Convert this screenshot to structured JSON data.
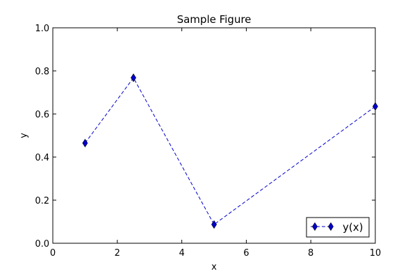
{
  "chart_data": {
    "type": "line",
    "title": "Sample Figure",
    "xlabel": "x",
    "ylabel": "y",
    "xlim": [
      0,
      10
    ],
    "ylim": [
      0.0,
      1.0
    ],
    "xticks": [
      0,
      2,
      4,
      6,
      8,
      10
    ],
    "xtick_labels": [
      "0",
      "2",
      "4",
      "6",
      "8",
      "10"
    ],
    "yticks": [
      0.0,
      0.2,
      0.4,
      0.6,
      0.8,
      1.0
    ],
    "ytick_labels": [
      "0.0",
      "0.2",
      "0.4",
      "0.6",
      "0.8",
      "1.0"
    ],
    "grid": false,
    "legend": {
      "position": "lower right"
    },
    "series": [
      {
        "name": "y(x)",
        "color": "#0000cc",
        "line_style": "dashed",
        "marker": "thin-diamond",
        "x": [
          1,
          2.5,
          5,
          10
        ],
        "y": [
          0.465,
          0.768,
          0.087,
          0.635
        ]
      }
    ]
  }
}
